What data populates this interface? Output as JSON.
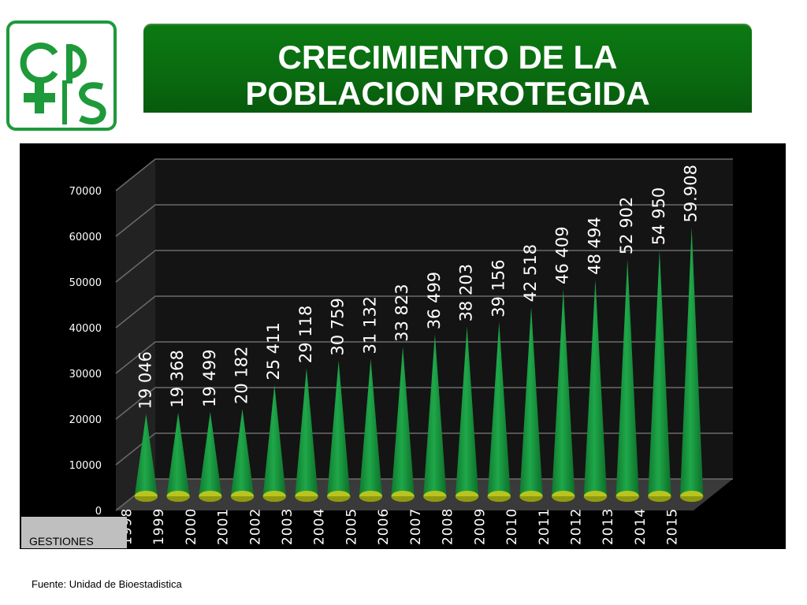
{
  "header": {
    "title_line1": "CRECIMIENTO DE LA",
    "title_line2": "POBLACION PROTEGIDA"
  },
  "logo": {
    "icon": "cps-logo-icon",
    "text": "cps",
    "color": "#1e9a3a"
  },
  "colors": {
    "cone_top": "#1fa84a",
    "cone_base": "#b9c41e",
    "background": "#000000",
    "banner": "#0a6a10"
  },
  "footer": {
    "source": "Fuente: Unidad de Bioestadistica"
  },
  "chart_data": {
    "type": "bar",
    "title": "",
    "xlabel": "GESTIONES",
    "ylabel": "",
    "ylim": [
      0,
      70000
    ],
    "yticks": [
      "0",
      "10000",
      "20000",
      "30000",
      "40000",
      "50000",
      "60000",
      "70000"
    ],
    "grid": true,
    "categories": [
      "1998",
      "1999",
      "2000",
      "2001",
      "2002",
      "2003",
      "2004",
      "2005",
      "2006",
      "2007",
      "2008",
      "2009",
      "2010",
      "2011",
      "2012",
      "2013",
      "2014",
      "2015"
    ],
    "values": [
      19046,
      19368,
      19499,
      20182,
      25411,
      29118,
      30759,
      31132,
      33823,
      36499,
      38203,
      39156,
      42518,
      46409,
      48494,
      52902,
      54950,
      59908
    ],
    "data_labels": [
      "19 046",
      "19 368",
      "19 499",
      "20 182",
      "25 411",
      "29 118",
      "30 759",
      "31 132",
      "33 823",
      "36 499",
      "38 203",
      "39 156",
      "42 518",
      "46 409",
      "48 494",
      "52 902",
      "54 950",
      "59.908"
    ]
  }
}
